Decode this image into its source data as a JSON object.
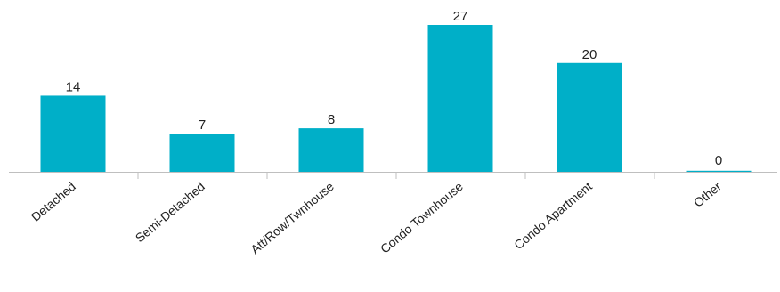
{
  "chart_data": {
    "type": "bar",
    "categories": [
      "Detached",
      "Semi-Detached",
      "Att/Row/Twnhouse",
      "Condo Townhouse",
      "Condo Apartment",
      "Other"
    ],
    "values": [
      14,
      7,
      8,
      27,
      20,
      0
    ],
    "title": "",
    "xlabel": "",
    "ylabel": "",
    "ylim": [
      0,
      27
    ],
    "grid": false,
    "legend": "none",
    "data_labels": [
      "14",
      "7",
      "8",
      "27",
      "20",
      "0"
    ],
    "colors": {
      "bar": "#00AFC8",
      "axis": "#BFBFBF",
      "text": "#222222"
    }
  }
}
